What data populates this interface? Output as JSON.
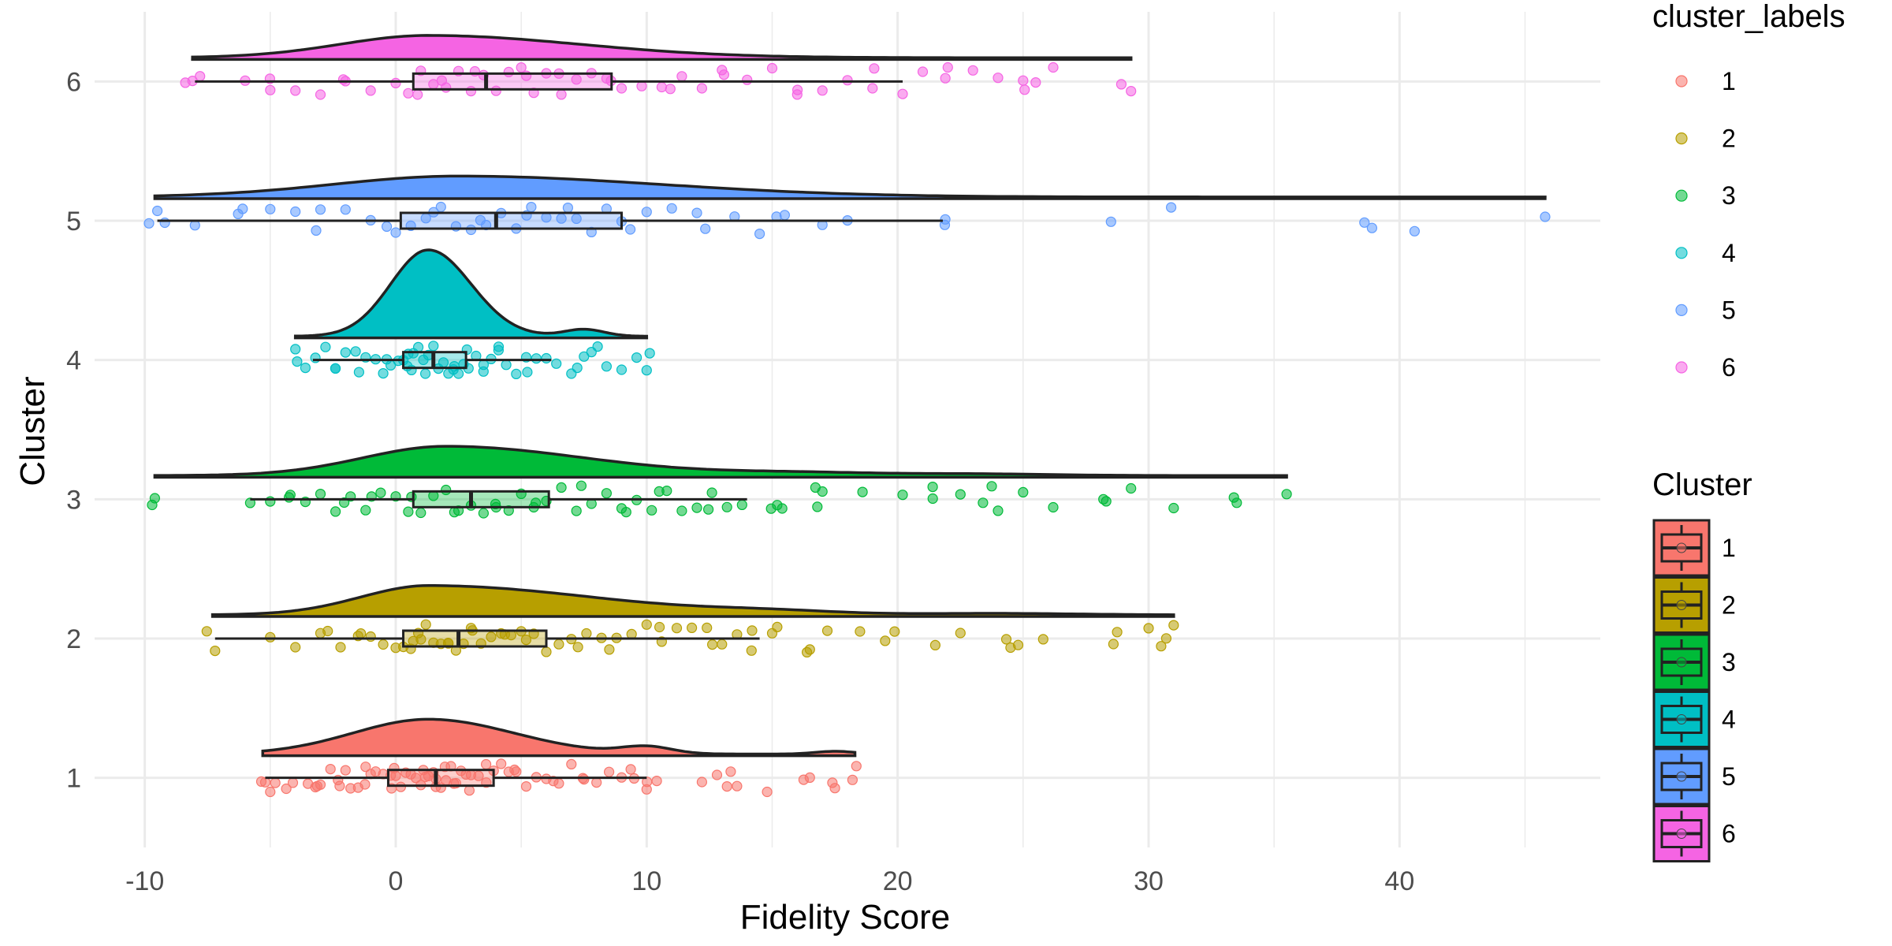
{
  "chart_data": {
    "type": "raincloud",
    "xlabel": "Fidelity Score",
    "ylabel": "Cluster",
    "xlim": [
      -12,
      48
    ],
    "x_ticks": [
      -10,
      0,
      10,
      20,
      30,
      40
    ],
    "y_categories": [
      "1",
      "2",
      "3",
      "4",
      "5",
      "6"
    ],
    "grid": true,
    "legend_position": "right",
    "legends": [
      {
        "title": "cluster_labels",
        "kind": "point",
        "entries": [
          "1",
          "2",
          "3",
          "4",
          "5",
          "6"
        ]
      },
      {
        "title": "Cluster",
        "kind": "boxplot",
        "entries": [
          "1",
          "2",
          "3",
          "4",
          "5",
          "6"
        ]
      }
    ],
    "colors": [
      "#F8766D",
      "#B79F00",
      "#00BA38",
      "#00BFC4",
      "#619CFF",
      "#F564E3"
    ],
    "series": [
      {
        "cluster": "1",
        "box": {
          "whisker_low": -5.2,
          "q1": -0.3,
          "median": 1.6,
          "q3": 3.9,
          "whisker_high": 10.0
        },
        "density": {
          "range": [
            -5.3,
            18.3
          ],
          "peak": 1.3,
          "bw_left": 3.0,
          "bw_right": 3.4,
          "height": 0.25,
          "bumps": [
            {
              "at": 10,
              "width": 1.0,
              "height": 0.05
            },
            {
              "at": 17.5,
              "width": 0.8,
              "height": 0.02
            }
          ]
        },
        "points": [
          -5.2,
          -5.0,
          -4.8,
          -4.1,
          -3.5,
          -3.2,
          -3.0,
          -2.6,
          -2.3,
          -2.0,
          -1.8,
          -1.5,
          -1.2,
          -1.0,
          -0.8,
          -0.5,
          -0.2,
          0.0,
          0.2,
          0.4,
          0.6,
          0.8,
          1.0,
          1.1,
          1.3,
          1.5,
          1.6,
          1.8,
          2.0,
          2.2,
          2.4,
          2.6,
          2.8,
          3.0,
          3.3,
          3.6,
          3.9,
          4.2,
          4.5,
          4.8,
          5.2,
          5.6,
          6.0,
          6.5,
          7.0,
          7.5,
          8.0,
          8.5,
          9.0,
          9.5,
          10.0,
          10.4,
          12.2,
          12.8,
          13.2,
          13.6,
          14.8,
          16.5,
          17.4,
          17.5,
          18.2
        ]
      },
      {
        "cluster": "2",
        "box": {
          "whisker_low": -7.2,
          "q1": 0.3,
          "median": 2.5,
          "q3": 6.0,
          "whisker_high": 14.5
        },
        "density": {
          "range": [
            -7.3,
            31.0
          ],
          "peak": 1.3,
          "bw_left": 2.7,
          "bw_right": 6.5,
          "height": 0.21,
          "bumps": [
            {
              "at": 15,
              "width": 2.5,
              "height": 0.02
            },
            {
              "at": 24,
              "width": 3.0,
              "height": 0.01
            }
          ]
        },
        "points": [
          -7.2,
          -5.0,
          -4.0,
          -3.0,
          -2.2,
          -1.5,
          -1.0,
          -0.5,
          0.0,
          0.3,
          0.6,
          0.9,
          1.2,
          1.5,
          1.8,
          2.1,
          2.4,
          2.7,
          3.0,
          3.4,
          3.8,
          4.2,
          4.6,
          5.0,
          5.5,
          6.0,
          6.5,
          7.0,
          7.6,
          8.2,
          8.8,
          9.4,
          10.0,
          10.6,
          11.2,
          11.8,
          12.4,
          13.0,
          13.6,
          14.2,
          15.0,
          15.2,
          16.5,
          17.2,
          18.5,
          19.5,
          21.5,
          22.5,
          24.5,
          24.8,
          25.8,
          28.6,
          30.0,
          30.5,
          31.0
        ]
      },
      {
        "cluster": "3",
        "box": {
          "whisker_low": -5.8,
          "q1": 0.7,
          "median": 3.0,
          "q3": 6.1,
          "whisker_high": 14.0
        },
        "density": {
          "range": [
            -9.6,
            35.5
          ],
          "peak": 2.0,
          "bw_left": 3.3,
          "bw_right": 5.5,
          "height": 0.21,
          "bumps": [
            {
              "at": 16,
              "width": 3.0,
              "height": 0.02
            },
            {
              "at": 23,
              "width": 3.0,
              "height": 0.012
            }
          ]
        },
        "points": [
          -9.6,
          -5.8,
          -5.0,
          -4.2,
          -3.6,
          -3.0,
          -2.4,
          -1.8,
          -1.2,
          -0.6,
          0.0,
          0.5,
          1.0,
          1.5,
          2.0,
          2.5,
          3.0,
          3.5,
          4.0,
          4.5,
          5.0,
          5.5,
          6.0,
          6.6,
          7.2,
          7.8,
          8.4,
          9.0,
          9.6,
          10.2,
          10.8,
          11.4,
          12.0,
          12.6,
          13.2,
          13.8,
          15.2,
          15.4,
          16.8,
          17.0,
          18.6,
          20.2,
          21.4,
          22.5,
          23.4,
          24.0,
          25.0,
          26.2,
          28.2,
          29.3,
          31.0,
          33.4,
          35.5
        ]
      },
      {
        "cluster": "4",
        "box": {
          "whisker_low": -3.3,
          "q1": 0.3,
          "median": 1.5,
          "q3": 2.8,
          "whisker_high": 6.2
        },
        "density": {
          "range": [
            -4.0,
            10.0
          ],
          "peak": 1.3,
          "bw_left": 1.5,
          "bw_right": 1.7,
          "height": 0.62,
          "bumps": [
            {
              "at": 7.5,
              "width": 0.8,
              "height": 0.05
            }
          ]
        },
        "points": [
          -4.0,
          -3.6,
          -3.2,
          -2.8,
          -2.4,
          -2.0,
          -1.6,
          -1.2,
          -0.8,
          -0.5,
          -0.2,
          0.1,
          0.3,
          0.5,
          0.7,
          0.9,
          1.1,
          1.3,
          1.5,
          1.7,
          1.9,
          2.1,
          2.3,
          2.5,
          2.7,
          2.9,
          3.2,
          3.5,
          3.8,
          4.1,
          4.4,
          4.8,
          5.2,
          5.6,
          6.0,
          6.4,
          7.0,
          7.5,
          7.8,
          8.4,
          9.0,
          9.6,
          10.0
        ]
      },
      {
        "cluster": "5",
        "box": {
          "whisker_low": -9.5,
          "q1": 0.2,
          "median": 4.0,
          "q3": 9.0,
          "whisker_high": 21.8
        },
        "density": {
          "range": [
            -9.6,
            45.8
          ],
          "peak": 2.5,
          "bw_left": 5.0,
          "bw_right": 8.0,
          "height": 0.15,
          "bumps": []
        },
        "points": [
          -9.5,
          -9.2,
          -8.0,
          -6.1,
          -5.0,
          -4.0,
          -3.0,
          -2.0,
          -1.0,
          0.0,
          0.6,
          1.2,
          1.8,
          2.4,
          3.0,
          3.6,
          4.2,
          4.8,
          5.4,
          6.0,
          6.6,
          7.2,
          7.8,
          8.4,
          9.0,
          10.0,
          11.0,
          12.0,
          13.5,
          14.5,
          15.5,
          17.0,
          18.0,
          21.9,
          28.5,
          30.9,
          38.6,
          40.6,
          45.8
        ]
      },
      {
        "cluster": "6",
        "box": {
          "whisker_low": -8.0,
          "q1": 0.7,
          "median": 3.6,
          "q3": 8.6,
          "whisker_high": 20.2
        },
        "density": {
          "range": [
            -8.1,
            29.3
          ],
          "peak": 1.3,
          "bw_left": 3.5,
          "bw_right": 6.0,
          "height": 0.16,
          "bumps": []
        },
        "points": [
          -8.1,
          -7.8,
          -6.0,
          -5.0,
          -4.0,
          -3.0,
          -2.0,
          -1.0,
          0.0,
          0.5,
          1.0,
          1.5,
          2.0,
          2.5,
          3.0,
          3.5,
          4.0,
          4.5,
          5.0,
          5.5,
          6.0,
          6.6,
          7.2,
          7.8,
          8.4,
          9.0,
          9.8,
          10.6,
          11.4,
          12.2,
          13.0,
          14.0,
          15.0,
          16.0,
          17.0,
          18.0,
          19.0,
          20.2,
          21.0,
          22.0,
          23.0,
          24.0,
          25.0,
          25.5,
          26.2,
          29.3
        ]
      }
    ]
  }
}
